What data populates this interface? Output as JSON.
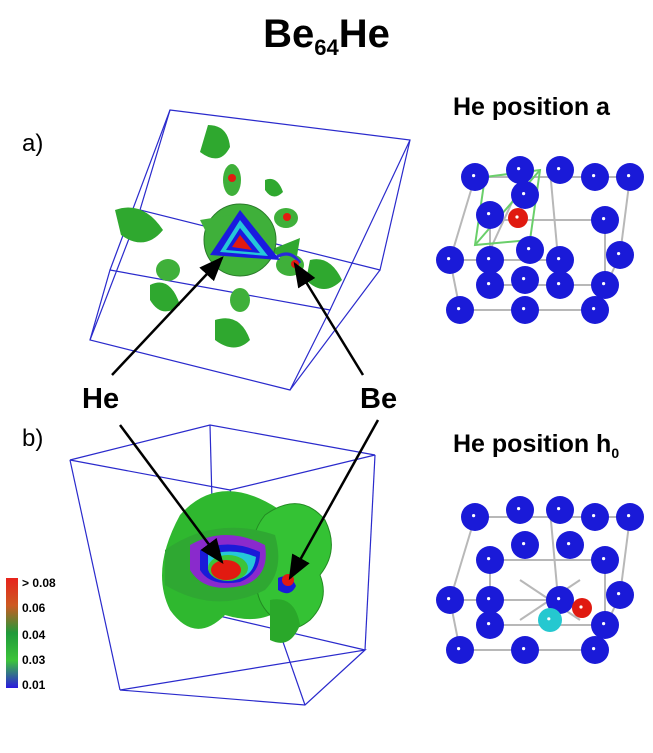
{
  "title": {
    "base": "Be",
    "subscript": "64",
    "suffix": "He"
  },
  "panels": {
    "a": {
      "label": "a)",
      "position_label": "He position a",
      "position_sub": ""
    },
    "b": {
      "label": "b)",
      "position_label": "He position h",
      "position_sub": "0"
    }
  },
  "annotations": {
    "he": "He",
    "be": "Be"
  },
  "colorbar": {
    "ticks": [
      "> 0.08",
      "0.06",
      "0.04",
      "0.03",
      "0.01"
    ],
    "colors": [
      "#e8231c",
      "#cc5a22",
      "#1f9a3a",
      "#3cc43a",
      "#2a1adf"
    ]
  },
  "colors": {
    "atom_be": "#1a1ad8",
    "atom_he": "#e01a10",
    "atom_he_alt": "#25c8d0",
    "box_edge": "#2a2acc",
    "isosurface": "#2fb82f"
  }
}
